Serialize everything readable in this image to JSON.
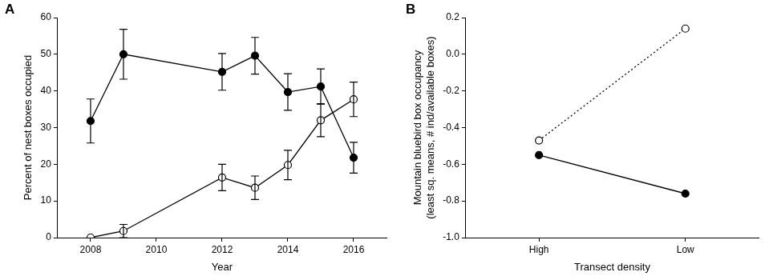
{
  "chart_data": [
    {
      "panel": "A",
      "type": "line",
      "xlabel": "Year",
      "ylabel": "Percent of nest boxes occupied",
      "x": [
        2008,
        2009,
        2012,
        2013,
        2014,
        2015,
        2016
      ],
      "xlim": [
        2007,
        2017
      ],
      "xticks": [
        2008,
        2010,
        2012,
        2014,
        2016
      ],
      "ylim": [
        0,
        60
      ],
      "yticks": [
        0,
        10,
        20,
        30,
        40,
        50,
        60
      ],
      "grid": false,
      "series": [
        {
          "color": "#000000",
          "marker": "circle",
          "line_style": "solid",
          "values": [
            31.8,
            50.0,
            45.2,
            49.6,
            39.7,
            41.2,
            21.8
          ],
          "errors": [
            6.0,
            6.8,
            5.0,
            5.0,
            5.0,
            4.8,
            4.2
          ]
        },
        {
          "color": "#000000",
          "marker": "open_circle",
          "line_style": "solid",
          "values": [
            0.0,
            1.8,
            16.4,
            13.6,
            19.8,
            32.0,
            37.7
          ],
          "errors": [
            0.0,
            1.8,
            3.6,
            3.2,
            4.0,
            4.5,
            4.7
          ]
        }
      ]
    },
    {
      "panel": "B",
      "type": "line",
      "xlabel": "Transect density",
      "ylabel": [
        "Mountain bluebird box occupancy",
        "(least sq. means, # ind/available boxes)"
      ],
      "categories": [
        "High",
        "Low"
      ],
      "ylim": [
        -1.0,
        0.2
      ],
      "yticks": [
        {
          "value": -1,
          "label": "-1.0"
        },
        -0.8,
        -0.6,
        -0.4,
        -0.2,
        {
          "value": 0,
          "label": "0.0"
        },
        0.2
      ],
      "grid": false,
      "series": [
        {
          "color": "#000000",
          "marker": "open_circle",
          "line_style": "dotted",
          "values": [
            -0.47,
            0.14
          ]
        },
        {
          "color": "#000000",
          "marker": "circle",
          "line_style": "solid",
          "values": [
            -0.55,
            -0.76
          ]
        }
      ]
    }
  ]
}
